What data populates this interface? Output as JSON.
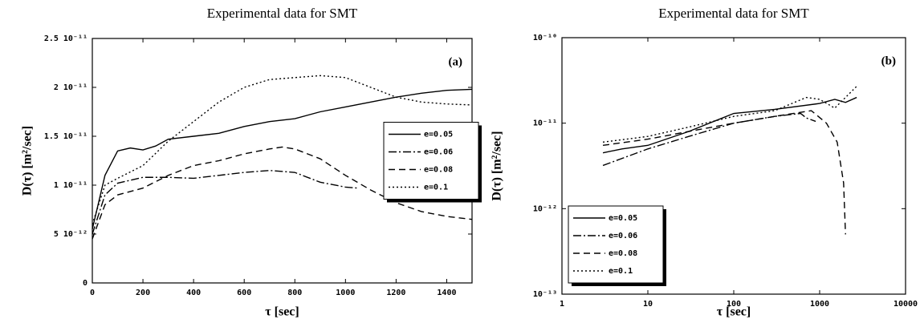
{
  "chart_data": [
    {
      "type": "line",
      "title": "Experimental data for SMT",
      "xlabel": "τ  [sec]",
      "ylabel": "D(τ)  [m²/sec]",
      "annotation": "(a)",
      "xlim": [
        0,
        1500
      ],
      "xticks": [
        0,
        200,
        400,
        600,
        800,
        1000,
        1200,
        1400
      ],
      "ylim": [
        0,
        2.5e-11
      ],
      "yticks": [
        0,
        {
          "value": 5e-12,
          "label": "5 10⁻¹²"
        },
        {
          "value": 1e-11,
          "label": "1 10⁻¹¹"
        },
        {
          "value": 1.5e-11,
          "label": "1.5 10⁻¹¹"
        },
        {
          "value": 2e-11,
          "label": "2 10⁻¹¹"
        },
        {
          "value": 2.5e-11,
          "label": "2.5 10⁻¹¹"
        }
      ],
      "legend": "center right",
      "series": [
        {
          "name": "e=0.05",
          "color": "#000000",
          "linestyle": "solid",
          "x": [
            0,
            50,
            100,
            150,
            200,
            250,
            300,
            400,
            500,
            600,
            700,
            800,
            900,
            1000,
            1100,
            1200,
            1300,
            1400,
            1500
          ],
          "values": [
            5.5e-12,
            1.1e-11,
            1.35e-11,
            1.38e-11,
            1.36e-11,
            1.4e-11,
            1.47e-11,
            1.5e-11,
            1.53e-11,
            1.6e-11,
            1.65e-11,
            1.68e-11,
            1.75e-11,
            1.8e-11,
            1.85e-11,
            1.9e-11,
            1.94e-11,
            1.97e-11,
            1.98e-11
          ]
        },
        {
          "name": "e=0.06",
          "color": "#000000",
          "linestyle": "dashdot",
          "x": [
            0,
            50,
            100,
            200,
            300,
            400,
            500,
            600,
            700,
            800,
            900,
            1000,
            1050
          ],
          "values": [
            5e-12,
            9e-12,
            1.02e-11,
            1.08e-11,
            1.08e-11,
            1.07e-11,
            1.1e-11,
            1.13e-11,
            1.15e-11,
            1.13e-11,
            1.03e-11,
            9.8e-12,
            9.7e-12
          ]
        },
        {
          "name": "e=0.08",
          "color": "#000000",
          "linestyle": "dashed",
          "x": [
            0,
            50,
            100,
            200,
            300,
            400,
            500,
            600,
            700,
            750,
            800,
            900,
            1000,
            1100,
            1200,
            1300,
            1400,
            1500
          ],
          "values": [
            4.5e-12,
            8e-12,
            9e-12,
            9.7e-12,
            1.1e-11,
            1.2e-11,
            1.25e-11,
            1.32e-11,
            1.37e-11,
            1.39e-11,
            1.37e-11,
            1.27e-11,
            1.1e-11,
            9.5e-12,
            8.2e-12,
            7.3e-12,
            6.8e-12,
            6.5e-12
          ]
        },
        {
          "name": "e=0.1",
          "color": "#000000",
          "linestyle": "dotted",
          "x": [
            0,
            50,
            100,
            200,
            300,
            400,
            500,
            600,
            700,
            800,
            900,
            1000,
            1100,
            1200,
            1300,
            1400,
            1500
          ],
          "values": [
            6e-12,
            1e-11,
            1.07e-11,
            1.2e-11,
            1.45e-11,
            1.65e-11,
            1.85e-11,
            2e-11,
            2.08e-11,
            2.1e-11,
            2.12e-11,
            2.1e-11,
            2e-11,
            1.9e-11,
            1.85e-11,
            1.83e-11,
            1.82e-11
          ]
        }
      ]
    },
    {
      "type": "line",
      "title": "Experimental data for SMT",
      "xlabel": "τ  [sec]",
      "ylabel": "D(τ)  [m²/sec]",
      "annotation": "(b)",
      "xscale": "log",
      "yscale": "log",
      "xlim": [
        1,
        10000
      ],
      "xticks": [
        1,
        10,
        100,
        1000,
        10000
      ],
      "ylim": [
        1e-13,
        1e-10
      ],
      "yticks": [
        {
          "value": 1e-13,
          "label": "10⁻¹³"
        },
        {
          "value": 1e-12,
          "label": "10⁻¹²"
        },
        {
          "value": 1e-11,
          "label": "10⁻¹¹"
        },
        {
          "value": 1e-10,
          "label": "10⁻¹⁰"
        }
      ],
      "legend": "lower left",
      "series": [
        {
          "name": "e=0.05",
          "color": "#000000",
          "linestyle": "solid",
          "x": [
            3,
            5,
            10,
            30,
            100,
            300,
            1000,
            1500,
            2000,
            2700
          ],
          "values": [
            4.5e-12,
            5e-12,
            5.5e-12,
            8e-12,
            1.3e-11,
            1.45e-11,
            1.7e-11,
            1.9e-11,
            1.75e-11,
            2e-11
          ]
        },
        {
          "name": "e=0.06",
          "color": "#000000",
          "linestyle": "dashdot",
          "x": [
            3,
            10,
            30,
            100,
            300,
            600,
            700,
            900
          ],
          "values": [
            3.2e-12,
            5e-12,
            7e-12,
            1e-11,
            1.2e-11,
            1.3e-11,
            1.15e-11,
            1.05e-11
          ]
        },
        {
          "name": "e=0.08",
          "color": "#000000",
          "linestyle": "dashed",
          "x": [
            3,
            10,
            30,
            100,
            300,
            800,
            1200,
            1600,
            1900,
            2000
          ],
          "values": [
            5.5e-12,
            6.5e-12,
            8e-12,
            1e-11,
            1.2e-11,
            1.4e-11,
            1e-11,
            6e-12,
            2e-12,
            5e-13
          ]
        },
        {
          "name": "e=0.1",
          "color": "#000000",
          "linestyle": "dotted",
          "x": [
            3,
            10,
            30,
            100,
            300,
            700,
            1000,
            1500,
            2000,
            2800
          ],
          "values": [
            6e-12,
            7e-12,
            9e-12,
            1.2e-11,
            1.4e-11,
            2e-11,
            1.9e-11,
            1.5e-11,
            2e-11,
            2.8e-11
          ]
        }
      ]
    }
  ]
}
